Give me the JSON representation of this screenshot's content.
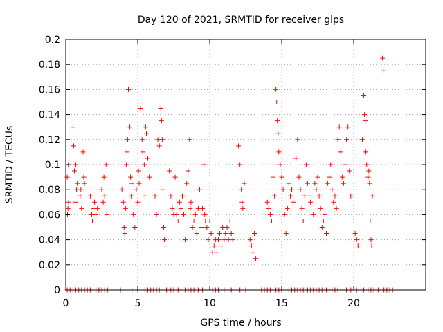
{
  "chart_data": {
    "type": "scatter",
    "title": "Day 120 of 2021, SRMTID for receiver glps",
    "xlabel": "GPS time / hours",
    "ylabel": "SRMTID / TECUs",
    "xlim": [
      0,
      25
    ],
    "ylim": [
      0,
      0.2
    ],
    "xticks": [
      0,
      5,
      10,
      15,
      20
    ],
    "xtick_labels": [
      "0",
      "5",
      "10",
      "15",
      "20"
    ],
    "yticks": [
      0,
      0.02,
      0.04,
      0.06,
      0.08,
      0.1,
      0.12,
      0.14,
      0.16,
      0.18,
      0.2
    ],
    "ytick_labels": [
      "0",
      "0.02",
      "0.04",
      "0.06",
      "0.08",
      "0.1",
      "0.12",
      "0.14",
      "0.16",
      "0.18",
      "0.2"
    ],
    "grid": true,
    "marker": "+",
    "color": "#ff0000",
    "series": [
      {
        "name": "SRMTID",
        "points": [
          [
            0.1,
            0.09
          ],
          [
            0.12,
            0.06
          ],
          [
            0.15,
            0.065
          ],
          [
            0.18,
            0.1
          ],
          [
            0.2,
            0.07
          ],
          [
            0.5,
            0.13
          ],
          [
            0.55,
            0.115
          ],
          [
            0.6,
            0.095
          ],
          [
            0.65,
            0.07
          ],
          [
            0.7,
            0.1
          ],
          [
            0.75,
            0.08
          ],
          [
            0.8,
            0.085
          ],
          [
            1.0,
            0.075
          ],
          [
            1.05,
            0.08
          ],
          [
            1.1,
            0.065
          ],
          [
            1.2,
            0.11
          ],
          [
            1.25,
            0.09
          ],
          [
            1.3,
            0.085
          ],
          [
            1.7,
            0.075
          ],
          [
            1.8,
            0.06
          ],
          [
            1.85,
            0.055
          ],
          [
            1.9,
            0.065
          ],
          [
            2.0,
            0.07
          ],
          [
            2.1,
            0.06
          ],
          [
            2.2,
            0.065
          ],
          [
            2.5,
            0.08
          ],
          [
            2.6,
            0.07
          ],
          [
            2.65,
            0.09
          ],
          [
            2.7,
            0.075
          ],
          [
            2.8,
            0.1
          ],
          [
            2.85,
            0.06
          ],
          [
            3.9,
            0.08
          ],
          [
            4.0,
            0.07
          ],
          [
            4.05,
            0.05
          ],
          [
            4.1,
            0.045
          ],
          [
            4.15,
            0.065
          ],
          [
            4.2,
            0.1
          ],
          [
            4.25,
            0.11
          ],
          [
            4.3,
            0.12
          ],
          [
            4.35,
            0.16
          ],
          [
            4.4,
            0.15
          ],
          [
            4.45,
            0.13
          ],
          [
            4.5,
            0.09
          ],
          [
            4.55,
            0.075
          ],
          [
            4.6,
            0.085
          ],
          [
            4.7,
            0.06
          ],
          [
            4.8,
            0.05
          ],
          [
            4.9,
            0.08
          ],
          [
            5.0,
            0.07
          ],
          [
            5.05,
            0.095
          ],
          [
            5.1,
            0.085
          ],
          [
            5.2,
            0.145
          ],
          [
            5.3,
            0.12
          ],
          [
            5.35,
            0.11
          ],
          [
            5.45,
            0.1
          ],
          [
            5.5,
            0.075
          ],
          [
            5.55,
            0.13
          ],
          [
            5.6,
            0.125
          ],
          [
            5.7,
            0.105
          ],
          [
            5.8,
            0.09
          ],
          [
            6.2,
            0.075
          ],
          [
            6.3,
            0.06
          ],
          [
            6.4,
            0.12
          ],
          [
            6.5,
            0.115
          ],
          [
            6.6,
            0.145
          ],
          [
            6.65,
            0.135
          ],
          [
            6.7,
            0.12
          ],
          [
            6.75,
            0.08
          ],
          [
            6.8,
            0.05
          ],
          [
            6.85,
            0.04
          ],
          [
            6.9,
            0.035
          ],
          [
            7.2,
            0.095
          ],
          [
            7.3,
            0.075
          ],
          [
            7.4,
            0.065
          ],
          [
            7.5,
            0.06
          ],
          [
            7.6,
            0.09
          ],
          [
            7.7,
            0.06
          ],
          [
            7.8,
            0.055
          ],
          [
            7.9,
            0.07
          ],
          [
            8.0,
            0.065
          ],
          [
            8.1,
            0.075
          ],
          [
            8.2,
            0.06
          ],
          [
            8.3,
            0.04
          ],
          [
            8.4,
            0.085
          ],
          [
            8.5,
            0.095
          ],
          [
            8.6,
            0.12
          ],
          [
            8.65,
            0.065
          ],
          [
            8.7,
            0.07
          ],
          [
            8.8,
            0.05
          ],
          [
            8.9,
            0.055
          ],
          [
            9.0,
            0.06
          ],
          [
            9.1,
            0.045
          ],
          [
            9.2,
            0.065
          ],
          [
            9.3,
            0.08
          ],
          [
            9.4,
            0.05
          ],
          [
            9.5,
            0.065
          ],
          [
            9.6,
            0.1
          ],
          [
            9.65,
            0.06
          ],
          [
            9.7,
            0.055
          ],
          [
            9.8,
            0.05
          ],
          [
            9.9,
            0.04
          ],
          [
            10.0,
            0.055
          ],
          [
            10.1,
            0.045
          ],
          [
            10.2,
            0.03
          ],
          [
            10.3,
            0.035
          ],
          [
            10.4,
            0.04
          ],
          [
            10.5,
            0.03
          ],
          [
            10.6,
            0.04
          ],
          [
            10.7,
            0.045
          ],
          [
            10.8,
            0.035
          ],
          [
            10.9,
            0.05
          ],
          [
            11.0,
            0.04
          ],
          [
            11.1,
            0.045
          ],
          [
            11.2,
            0.05
          ],
          [
            11.3,
            0.04
          ],
          [
            11.4,
            0.055
          ],
          [
            11.5,
            0.045
          ],
          [
            11.6,
            0.04
          ],
          [
            12.0,
            0.115
          ],
          [
            12.1,
            0.1
          ],
          [
            12.2,
            0.08
          ],
          [
            12.25,
            0.07
          ],
          [
            12.3,
            0.065
          ],
          [
            12.4,
            0.085
          ],
          [
            12.8,
            0.04
          ],
          [
            12.9,
            0.035
          ],
          [
            13.0,
            0.03
          ],
          [
            13.1,
            0.045
          ],
          [
            13.2,
            0.025
          ],
          [
            14.0,
            0.07
          ],
          [
            14.1,
            0.065
          ],
          [
            14.2,
            0.06
          ],
          [
            14.3,
            0.055
          ],
          [
            14.4,
            0.09
          ],
          [
            14.5,
            0.075
          ],
          [
            14.6,
            0.16
          ],
          [
            14.65,
            0.15
          ],
          [
            14.7,
            0.135
          ],
          [
            14.75,
            0.125
          ],
          [
            14.8,
            0.11
          ],
          [
            14.9,
            0.1
          ],
          [
            15.0,
            0.09
          ],
          [
            15.1,
            0.08
          ],
          [
            15.2,
            0.06
          ],
          [
            15.3,
            0.045
          ],
          [
            15.4,
            0.065
          ],
          [
            15.5,
            0.085
          ],
          [
            15.6,
            0.075
          ],
          [
            15.7,
            0.08
          ],
          [
            15.8,
            0.07
          ],
          [
            16.0,
            0.105
          ],
          [
            16.1,
            0.12
          ],
          [
            16.2,
            0.09
          ],
          [
            16.3,
            0.08
          ],
          [
            16.4,
            0.065
          ],
          [
            16.5,
            0.055
          ],
          [
            16.6,
            0.075
          ],
          [
            16.7,
            0.1
          ],
          [
            16.8,
            0.085
          ],
          [
            16.9,
            0.075
          ],
          [
            17.0,
            0.07
          ],
          [
            17.2,
            0.06
          ],
          [
            17.3,
            0.085
          ],
          [
            17.4,
            0.08
          ],
          [
            17.5,
            0.09
          ],
          [
            17.6,
            0.075
          ],
          [
            17.7,
            0.065
          ],
          [
            17.8,
            0.05
          ],
          [
            17.9,
            0.055
          ],
          [
            18.0,
            0.06
          ],
          [
            18.1,
            0.045
          ],
          [
            18.2,
            0.085
          ],
          [
            18.3,
            0.09
          ],
          [
            18.4,
            0.1
          ],
          [
            18.5,
            0.08
          ],
          [
            18.6,
            0.07
          ],
          [
            18.7,
            0.075
          ],
          [
            18.8,
            0.065
          ],
          [
            18.9,
            0.12
          ],
          [
            19.0,
            0.13
          ],
          [
            19.1,
            0.11
          ],
          [
            19.2,
            0.09
          ],
          [
            19.3,
            0.085
          ],
          [
            19.4,
            0.1
          ],
          [
            19.5,
            0.12
          ],
          [
            19.6,
            0.13
          ],
          [
            19.7,
            0.095
          ],
          [
            19.8,
            0.075
          ],
          [
            20.1,
            0.045
          ],
          [
            20.2,
            0.04
          ],
          [
            20.3,
            0.035
          ],
          [
            20.6,
            0.12
          ],
          [
            20.7,
            0.155
          ],
          [
            20.75,
            0.14
          ],
          [
            20.8,
            0.135
          ],
          [
            20.85,
            0.11
          ],
          [
            20.9,
            0.1
          ],
          [
            21.0,
            0.09
          ],
          [
            21.05,
            0.095
          ],
          [
            21.1,
            0.085
          ],
          [
            21.15,
            0.055
          ],
          [
            21.2,
            0.04
          ],
          [
            21.25,
            0.035
          ],
          [
            21.3,
            0.075
          ],
          [
            22.0,
            0.185
          ],
          [
            22.05,
            0.175
          ]
        ]
      },
      {
        "name": "zero",
        "points": [
          [
            0.1,
            0
          ],
          [
            0.3,
            0
          ],
          [
            0.5,
            0
          ],
          [
            0.7,
            0
          ],
          [
            0.9,
            0
          ],
          [
            1.1,
            0
          ],
          [
            1.3,
            0
          ],
          [
            1.5,
            0
          ],
          [
            1.7,
            0
          ],
          [
            1.9,
            0
          ],
          [
            2.1,
            0
          ],
          [
            2.3,
            0
          ],
          [
            2.5,
            0
          ],
          [
            2.7,
            0
          ],
          [
            2.9,
            0
          ],
          [
            3.8,
            0
          ],
          [
            4.4,
            0
          ],
          [
            4.6,
            0
          ],
          [
            5.0,
            0
          ],
          [
            5.5,
            0
          ],
          [
            5.7,
            0
          ],
          [
            5.9,
            0
          ],
          [
            6.1,
            0
          ],
          [
            6.3,
            0
          ],
          [
            6.5,
            0
          ],
          [
            7.0,
            0
          ],
          [
            7.3,
            0
          ],
          [
            7.5,
            0
          ],
          [
            7.8,
            0
          ],
          [
            8.0,
            0
          ],
          [
            8.3,
            0
          ],
          [
            8.5,
            0
          ],
          [
            8.7,
            0
          ],
          [
            8.9,
            0
          ],
          [
            9.2,
            0
          ],
          [
            9.5,
            0
          ],
          [
            10.2,
            0
          ],
          [
            10.4,
            0
          ],
          [
            10.6,
            0
          ],
          [
            11.0,
            0
          ],
          [
            11.5,
            0
          ],
          [
            11.9,
            0
          ],
          [
            12.1,
            0
          ],
          [
            12.5,
            0
          ],
          [
            13.6,
            0
          ],
          [
            13.8,
            0
          ],
          [
            14.0,
            0
          ],
          [
            14.2,
            0
          ],
          [
            14.4,
            0
          ],
          [
            14.6,
            0
          ],
          [
            14.8,
            0
          ],
          [
            15.0,
            0
          ],
          [
            15.5,
            0
          ],
          [
            15.7,
            0
          ],
          [
            15.9,
            0
          ],
          [
            16.1,
            0
          ],
          [
            16.3,
            0
          ],
          [
            16.5,
            0
          ],
          [
            16.8,
            0
          ],
          [
            17.0,
            0
          ],
          [
            17.2,
            0
          ],
          [
            17.4,
            0
          ],
          [
            17.6,
            0
          ],
          [
            17.8,
            0
          ],
          [
            18.1,
            0
          ],
          [
            18.3,
            0
          ],
          [
            18.5,
            0
          ],
          [
            18.7,
            0
          ],
          [
            18.9,
            0
          ],
          [
            19.5,
            0
          ],
          [
            19.8,
            0
          ],
          [
            20.2,
            0
          ],
          [
            20.5,
            0
          ],
          [
            20.7,
            0
          ],
          [
            21.0,
            0
          ],
          [
            21.2,
            0
          ],
          [
            21.4,
            0
          ],
          [
            21.7,
            0
          ],
          [
            21.9,
            0
          ],
          [
            22.1,
            0
          ],
          [
            22.3,
            0
          ],
          [
            22.5,
            0
          ],
          [
            22.7,
            0
          ]
        ]
      }
    ]
  }
}
